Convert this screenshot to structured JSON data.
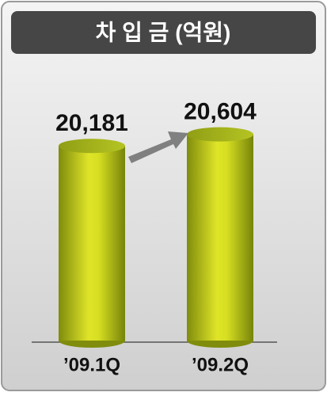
{
  "chart_data": {
    "type": "cylinder-bar",
    "title": "차 입 금 (억원)",
    "categories": [
      "’09.1Q",
      "’09.2Q"
    ],
    "values": [
      20181,
      20604
    ],
    "value_labels": [
      "20,181",
      "20,604"
    ],
    "color": "#c8d41a",
    "ylim": [
      13000,
      21000
    ]
  }
}
